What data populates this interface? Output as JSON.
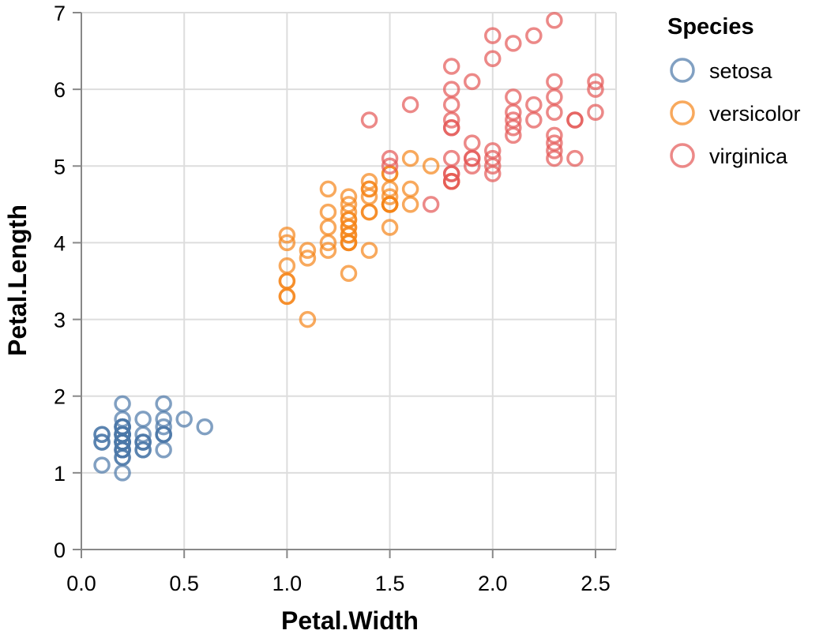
{
  "chart_data": {
    "type": "scatter",
    "xlabel": "Petal.Width",
    "ylabel": "Petal.Length",
    "xlim": [
      0,
      2.6
    ],
    "ylim": [
      0,
      7
    ],
    "x_ticks": [
      "0.0",
      "0.5",
      "1.0",
      "1.5",
      "2.0",
      "2.5"
    ],
    "y_ticks": [
      "0",
      "1",
      "2",
      "3",
      "4",
      "5",
      "6",
      "7"
    ],
    "grid": true,
    "marker": "open-circle",
    "legend": {
      "title": "Species",
      "position": "top-right"
    },
    "series": [
      {
        "name": "setosa",
        "color": "#4c78a8",
        "points": [
          [
            0.2,
            1.4
          ],
          [
            0.2,
            1.4
          ],
          [
            0.2,
            1.3
          ],
          [
            0.2,
            1.5
          ],
          [
            0.2,
            1.4
          ],
          [
            0.4,
            1.7
          ],
          [
            0.3,
            1.4
          ],
          [
            0.2,
            1.5
          ],
          [
            0.2,
            1.4
          ],
          [
            0.1,
            1.5
          ],
          [
            0.2,
            1.5
          ],
          [
            0.2,
            1.6
          ],
          [
            0.1,
            1.4
          ],
          [
            0.1,
            1.1
          ],
          [
            0.2,
            1.2
          ],
          [
            0.4,
            1.5
          ],
          [
            0.4,
            1.3
          ],
          [
            0.3,
            1.4
          ],
          [
            0.3,
            1.7
          ],
          [
            0.3,
            1.5
          ],
          [
            0.2,
            1.7
          ],
          [
            0.4,
            1.5
          ],
          [
            0.2,
            1.0
          ],
          [
            0.5,
            1.7
          ],
          [
            0.2,
            1.9
          ],
          [
            0.2,
            1.6
          ],
          [
            0.4,
            1.6
          ],
          [
            0.2,
            1.5
          ],
          [
            0.2,
            1.4
          ],
          [
            0.2,
            1.6
          ],
          [
            0.2,
            1.6
          ],
          [
            0.4,
            1.5
          ],
          [
            0.1,
            1.5
          ],
          [
            0.2,
            1.4
          ],
          [
            0.2,
            1.5
          ],
          [
            0.2,
            1.2
          ],
          [
            0.2,
            1.3
          ],
          [
            0.1,
            1.4
          ],
          [
            0.2,
            1.3
          ],
          [
            0.2,
            1.5
          ],
          [
            0.3,
            1.3
          ],
          [
            0.3,
            1.3
          ],
          [
            0.2,
            1.3
          ],
          [
            0.6,
            1.6
          ],
          [
            0.4,
            1.9
          ],
          [
            0.3,
            1.4
          ],
          [
            0.2,
            1.6
          ],
          [
            0.2,
            1.4
          ],
          [
            0.2,
            1.5
          ],
          [
            0.2,
            1.4
          ]
        ]
      },
      {
        "name": "versicolor",
        "color": "#f58518",
        "points": [
          [
            1.4,
            4.7
          ],
          [
            1.5,
            4.5
          ],
          [
            1.5,
            4.9
          ],
          [
            1.3,
            4.0
          ],
          [
            1.5,
            4.6
          ],
          [
            1.3,
            4.5
          ],
          [
            1.6,
            4.7
          ],
          [
            1.0,
            3.3
          ],
          [
            1.3,
            4.6
          ],
          [
            1.4,
            3.9
          ],
          [
            1.0,
            3.5
          ],
          [
            1.5,
            4.2
          ],
          [
            1.0,
            4.0
          ],
          [
            1.4,
            4.7
          ],
          [
            1.3,
            3.6
          ],
          [
            1.4,
            4.4
          ],
          [
            1.5,
            4.5
          ],
          [
            1.0,
            4.1
          ],
          [
            1.5,
            4.5
          ],
          [
            1.1,
            3.9
          ],
          [
            1.8,
            4.8
          ],
          [
            1.3,
            4.0
          ],
          [
            1.5,
            4.9
          ],
          [
            1.2,
            4.7
          ],
          [
            1.3,
            4.3
          ],
          [
            1.4,
            4.4
          ],
          [
            1.4,
            4.8
          ],
          [
            1.7,
            5.0
          ],
          [
            1.5,
            4.5
          ],
          [
            1.0,
            3.5
          ],
          [
            1.1,
            3.8
          ],
          [
            1.0,
            3.7
          ],
          [
            1.2,
            3.9
          ],
          [
            1.6,
            5.1
          ],
          [
            1.5,
            4.5
          ],
          [
            1.6,
            4.5
          ],
          [
            1.5,
            4.7
          ],
          [
            1.3,
            4.4
          ],
          [
            1.3,
            4.1
          ],
          [
            1.3,
            4.0
          ],
          [
            1.2,
            4.4
          ],
          [
            1.4,
            4.6
          ],
          [
            1.2,
            4.0
          ],
          [
            1.0,
            3.3
          ],
          [
            1.3,
            4.2
          ],
          [
            1.2,
            4.2
          ],
          [
            1.3,
            4.2
          ],
          [
            1.3,
            4.3
          ],
          [
            1.1,
            3.0
          ],
          [
            1.3,
            4.1
          ]
        ]
      },
      {
        "name": "virginica",
        "color": "#e45756",
        "points": [
          [
            2.5,
            6.0
          ],
          [
            1.9,
            5.1
          ],
          [
            2.1,
            5.9
          ],
          [
            1.8,
            5.6
          ],
          [
            2.2,
            5.8
          ],
          [
            2.1,
            6.6
          ],
          [
            1.7,
            4.5
          ],
          [
            1.8,
            6.3
          ],
          [
            1.8,
            5.8
          ],
          [
            2.5,
            6.1
          ],
          [
            2.0,
            5.1
          ],
          [
            1.9,
            5.3
          ],
          [
            2.1,
            5.5
          ],
          [
            2.0,
            5.0
          ],
          [
            2.4,
            5.1
          ],
          [
            2.3,
            5.3
          ],
          [
            1.8,
            5.5
          ],
          [
            2.2,
            6.7
          ],
          [
            2.3,
            6.9
          ],
          [
            1.5,
            5.0
          ],
          [
            2.3,
            5.7
          ],
          [
            2.0,
            4.9
          ],
          [
            2.0,
            6.7
          ],
          [
            1.8,
            4.9
          ],
          [
            2.1,
            5.7
          ],
          [
            1.8,
            6.0
          ],
          [
            1.8,
            4.8
          ],
          [
            1.8,
            4.9
          ],
          [
            2.1,
            5.6
          ],
          [
            1.6,
            5.8
          ],
          [
            1.9,
            6.1
          ],
          [
            2.0,
            6.4
          ],
          [
            2.2,
            5.6
          ],
          [
            1.5,
            5.1
          ],
          [
            1.4,
            5.6
          ],
          [
            2.3,
            6.1
          ],
          [
            2.4,
            5.6
          ],
          [
            1.8,
            5.5
          ],
          [
            1.8,
            4.8
          ],
          [
            2.1,
            5.4
          ],
          [
            2.4,
            5.6
          ],
          [
            2.3,
            5.1
          ],
          [
            1.9,
            5.1
          ],
          [
            2.3,
            5.9
          ],
          [
            2.5,
            5.7
          ],
          [
            2.3,
            5.2
          ],
          [
            1.9,
            5.0
          ],
          [
            2.0,
            5.2
          ],
          [
            2.3,
            5.4
          ],
          [
            1.8,
            5.1
          ]
        ]
      }
    ]
  }
}
